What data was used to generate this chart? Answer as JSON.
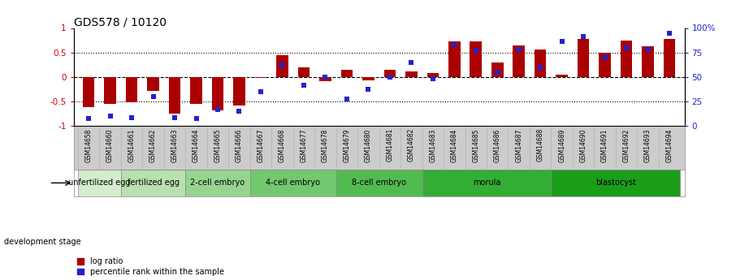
{
  "title": "GDS578 / 10120",
  "samples": [
    "GSM14658",
    "GSM14660",
    "GSM14661",
    "GSM14662",
    "GSM14663",
    "GSM14664",
    "GSM14665",
    "GSM14666",
    "GSM14667",
    "GSM14668",
    "GSM14677",
    "GSM14678",
    "GSM14679",
    "GSM14680",
    "GSM14681",
    "GSM14682",
    "GSM14683",
    "GSM14684",
    "GSM14685",
    "GSM14686",
    "GSM14687",
    "GSM14688",
    "GSM14689",
    "GSM14690",
    "GSM14691",
    "GSM14692",
    "GSM14693",
    "GSM14694"
  ],
  "log_ratio": [
    -0.62,
    -0.55,
    -0.52,
    -0.28,
    -0.75,
    -0.55,
    -0.67,
    -0.58,
    -0.02,
    0.44,
    0.2,
    -0.08,
    0.15,
    -0.06,
    0.15,
    0.12,
    0.08,
    0.73,
    0.72,
    0.3,
    0.65,
    0.56,
    0.05,
    0.78,
    0.5,
    0.75,
    0.62,
    0.78
  ],
  "percentile_rank": [
    8,
    10,
    9,
    30,
    9,
    8,
    17,
    15,
    35,
    62,
    42,
    50,
    28,
    38,
    50,
    65,
    48,
    83,
    77,
    55,
    78,
    60,
    86,
    91,
    70,
    80,
    78,
    95
  ],
  "stages": [
    {
      "label": "unfertilized egg",
      "start": 0,
      "end": 2,
      "color": "#d5edcd"
    },
    {
      "label": "fertilized egg",
      "start": 2,
      "end": 5,
      "color": "#b8e0b0"
    },
    {
      "label": "2-cell embryo",
      "start": 5,
      "end": 8,
      "color": "#96d490"
    },
    {
      "label": "4-cell embryo",
      "start": 8,
      "end": 12,
      "color": "#72c86e"
    },
    {
      "label": "8-cell embryo",
      "start": 12,
      "end": 16,
      "color": "#52bb50"
    },
    {
      "label": "morula",
      "start": 16,
      "end": 22,
      "color": "#34ad34"
    },
    {
      "label": "blastocyst",
      "start": 22,
      "end": 28,
      "color": "#1a9e1a"
    }
  ],
  "bar_color": "#aa0000",
  "dot_color": "#2222cc",
  "ylim_left": [
    -1.0,
    1.0
  ],
  "ylim_right": [
    0,
    100
  ],
  "yticks_left": [
    -1.0,
    -0.5,
    0.0,
    0.5,
    1.0
  ],
  "ytick_labels_left": [
    "-1",
    "-0.5",
    "0",
    "0.5",
    "1"
  ],
  "yticks_right": [
    0,
    25,
    50,
    75,
    100
  ],
  "ytick_labels_right": [
    "0",
    "25",
    "50",
    "75",
    "100%"
  ],
  "hlines": [
    -0.5,
    0.0,
    0.5
  ],
  "hline_styles": [
    "dotted",
    "dashed",
    "dotted"
  ],
  "legend_items": [
    {
      "label": "log ratio",
      "color": "#aa0000"
    },
    {
      "label": "percentile rank within the sample",
      "color": "#2222cc"
    }
  ],
  "dev_stage_label": "development stage",
  "xlabel_color": "#222222",
  "title_fontsize": 10,
  "tick_fontsize": 7.5,
  "label_fontsize": 7.5
}
